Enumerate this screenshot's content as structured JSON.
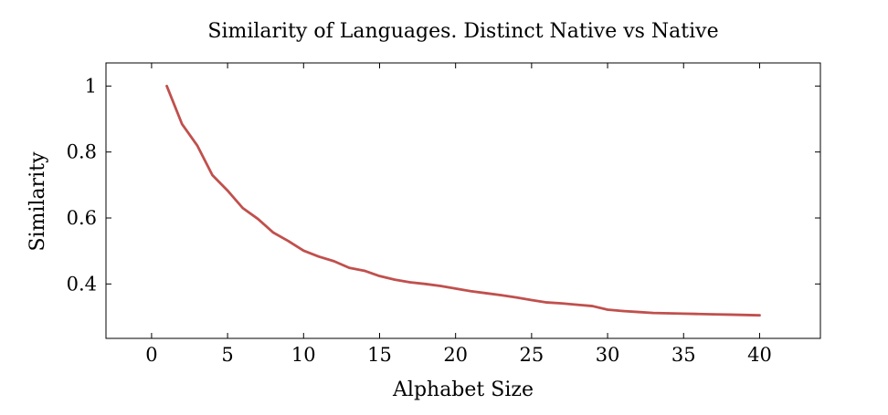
{
  "chart_data": {
    "type": "line",
    "title": "Similarity of Languages. Distinct Native vs Native",
    "xlabel": "Alphabet Size",
    "ylabel": "Similarity",
    "xlim": [
      -3,
      44
    ],
    "ylim": [
      0.235,
      1.07
    ],
    "xticks": [
      0,
      5,
      10,
      15,
      20,
      25,
      30,
      35,
      40
    ],
    "yticks": [
      0.4,
      0.6,
      0.8,
      1
    ],
    "grid": false,
    "legend": "none",
    "series": [
      {
        "color": "#c0504d",
        "x": [
          1,
          2,
          3,
          4,
          5,
          6,
          7,
          8,
          9,
          10,
          11,
          12,
          13,
          14,
          15,
          16,
          17,
          18,
          19,
          20,
          21,
          22,
          23,
          24,
          25,
          26,
          27,
          28,
          29,
          30,
          31,
          32,
          33,
          34,
          35,
          36,
          37,
          38,
          39,
          40
        ],
        "y": [
          1.0,
          0.885,
          0.82,
          0.73,
          0.683,
          0.63,
          0.597,
          0.556,
          0.53,
          0.501,
          0.483,
          0.469,
          0.449,
          0.44,
          0.424,
          0.413,
          0.405,
          0.4,
          0.394,
          0.386,
          0.378,
          0.372,
          0.366,
          0.359,
          0.351,
          0.344,
          0.341,
          0.337,
          0.333,
          0.322,
          0.318,
          0.315,
          0.312,
          0.311,
          0.31,
          0.309,
          0.308,
          0.307,
          0.306,
          0.305
        ]
      }
    ]
  }
}
